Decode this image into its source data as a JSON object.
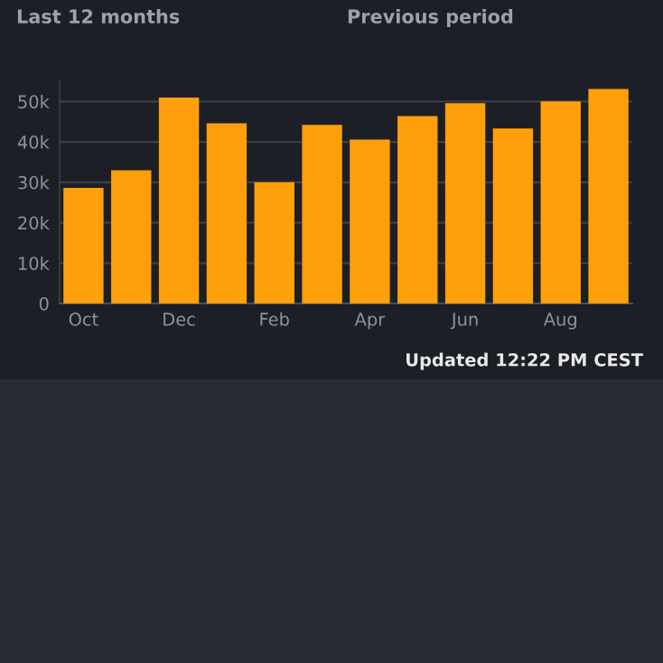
{
  "chart_data": {
    "type": "bar",
    "categories": [
      "Oct",
      null,
      "Dec",
      null,
      "Feb",
      null,
      "Apr",
      null,
      "Jun",
      null,
      "Aug",
      null
    ],
    "values": [
      28600,
      33000,
      51000,
      44600,
      30000,
      44200,
      40600,
      46400,
      49600,
      43300,
      50000,
      53100
    ],
    "color": "#ff9f0a",
    "ylim": [
      0,
      55000
    ],
    "yticks": [
      0,
      {
        "value": 10000,
        "label": "10k"
      },
      {
        "value": 20000,
        "label": "20k"
      },
      {
        "value": 30000,
        "label": "30k"
      },
      {
        "value": 40000,
        "label": "40k"
      },
      {
        "value": 50000,
        "label": "50k"
      }
    ],
    "grid": "y",
    "annotations": [
      "Last 12 months",
      "Previous period",
      "Updated 12:22 PM CEST"
    ]
  }
}
